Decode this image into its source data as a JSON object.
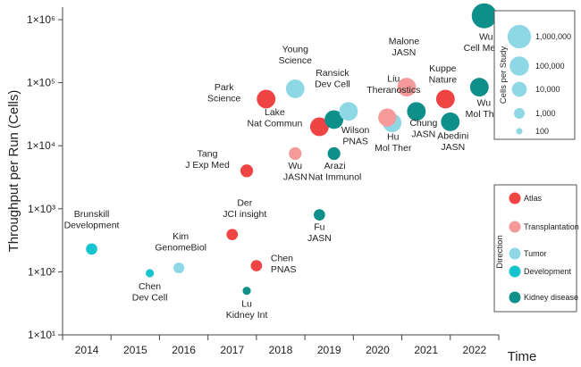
{
  "chart_data": {
    "type": "scatter",
    "ylabel": "Throughput per Run (Cells)",
    "xlabel": "Time",
    "y_scale": "log10",
    "ylim": [
      10,
      1000000
    ],
    "xlim": [
      2013.5,
      2022.5
    ],
    "x_ticks": [
      "2014",
      "2015",
      "2016",
      "2017",
      "2018",
      "2019",
      "2020",
      "2021",
      "2022"
    ],
    "y_ticks": [
      {
        "value": 10,
        "label": "1×10¹"
      },
      {
        "value": 100,
        "label": "1×10²"
      },
      {
        "value": 1000,
        "label": "1×10³"
      },
      {
        "value": 10000,
        "label": "1×10⁴"
      },
      {
        "value": 100000,
        "label": "1×10⁵"
      },
      {
        "value": 1000000,
        "label": "1×10⁶"
      }
    ],
    "colors": {
      "Atlas": "#EF4444",
      "Transplantation": "#F59A9A",
      "Tumor": "#8ED8E6",
      "Development": "#17C4CF",
      "Kidney disease": "#0E8F8A"
    },
    "points": [
      {
        "year": 2014.1,
        "y": 230,
        "size": 1000,
        "category": "Development",
        "label": [
          "Brunskill",
          "Development"
        ]
      },
      {
        "year": 2015.3,
        "y": 95,
        "size": 200,
        "category": "Development",
        "label": [
          "Chen",
          "Dev Cell"
        ]
      },
      {
        "year": 2015.9,
        "y": 115,
        "size": 800,
        "category": "Tumor",
        "label": [
          "Kim",
          "GenomeBiol"
        ]
      },
      {
        "year": 2017.0,
        "y": 390,
        "size": 1000,
        "category": "Atlas",
        "label": [
          "Der",
          "JCI insight"
        ]
      },
      {
        "year": 2017.3,
        "y": 50,
        "size": 200,
        "category": "Kidney disease",
        "label": [
          "Lu",
          "Kidney Int"
        ]
      },
      {
        "year": 2017.5,
        "y": 125,
        "size": 1000,
        "category": "Atlas",
        "label": [
          "Chen",
          "PNAS"
        ]
      },
      {
        "year": 2017.3,
        "y": 4000,
        "size": 2000,
        "category": "Atlas",
        "label": [
          "Tang",
          "J Exp Med"
        ]
      },
      {
        "year": 2017.7,
        "y": 55000,
        "size": 40000,
        "category": "Atlas",
        "label": [
          "Park",
          "Science"
        ]
      },
      {
        "year": 2018.3,
        "y": 80000,
        "size": 40000,
        "category": "Tumor",
        "label": [
          "Young",
          "Science"
        ]
      },
      {
        "year": 2018.3,
        "y": 7500,
        "size": 2000,
        "category": "Transplantation",
        "label": [
          "Wu",
          "JASN"
        ]
      },
      {
        "year": 2018.8,
        "y": 800,
        "size": 1000,
        "category": "Kidney disease",
        "label": [
          "Fu",
          "JASN"
        ]
      },
      {
        "year": 2018.8,
        "y": 20000,
        "size": 40000,
        "category": "Atlas",
        "label": [
          "Lake",
          "Nat Commun"
        ]
      },
      {
        "year": 2019.1,
        "y": 7500,
        "size": 2000,
        "category": "Kidney disease",
        "label": [
          "Arazi",
          "Nat Immunol"
        ]
      },
      {
        "year": 2019.1,
        "y": 26000,
        "size": 40000,
        "category": "Kidney disease",
        "label": [
          "Wilson",
          "PNAS"
        ]
      },
      {
        "year": 2019.4,
        "y": 35000,
        "size": 40000,
        "category": "Tumor",
        "label": [
          "Ransick",
          "Dev Cell"
        ]
      },
      {
        "year": 2020.2,
        "y": 28000,
        "size": 30000,
        "category": "Transplantation",
        "label": [
          "Liu",
          "Theranostics"
        ]
      },
      {
        "year": 2020.3,
        "y": 23000,
        "size": 40000,
        "category": "Tumor",
        "label": [
          "Hu",
          "Mol Ther"
        ]
      },
      {
        "year": 2020.6,
        "y": 85000,
        "size": 40000,
        "category": "Transplantation",
        "label": [
          "Malone",
          "JASN"
        ]
      },
      {
        "year": 2020.8,
        "y": 35000,
        "size": 40000,
        "category": "Kidney disease",
        "label": [
          "Chung",
          "JASN"
        ]
      },
      {
        "year": 2021.4,
        "y": 55000,
        "size": 40000,
        "category": "Atlas",
        "label": [
          "Kuppe",
          "Nature"
        ]
      },
      {
        "year": 2021.5,
        "y": 24000,
        "size": 40000,
        "category": "Kidney disease",
        "label": [
          "Abedini",
          "JASN"
        ]
      },
      {
        "year": 2022.1,
        "y": 85000,
        "size": 40000,
        "category": "Kidney disease",
        "label": [
          "Wu",
          "Mol Ther"
        ]
      },
      {
        "year": 2022.2,
        "y": 1150000,
        "size": 1000000,
        "category": "Kidney disease",
        "label": [
          "Wu",
          "Cell Metab"
        ]
      }
    ],
    "size_legend": {
      "title": "Cells per Study",
      "entries": [
        {
          "label": "1,000,000",
          "size": 1000000
        },
        {
          "label": "100,000",
          "size": 100000
        },
        {
          "label": "10,000",
          "size": 10000
        },
        {
          "label": "1,000",
          "size": 1000
        },
        {
          "label": "100",
          "size": 100
        }
      ]
    },
    "color_legend": {
      "title": "Direction",
      "entries": [
        "Atlas",
        "Transplantation",
        "Tumor",
        "Development",
        "Kidney disease"
      ]
    }
  }
}
